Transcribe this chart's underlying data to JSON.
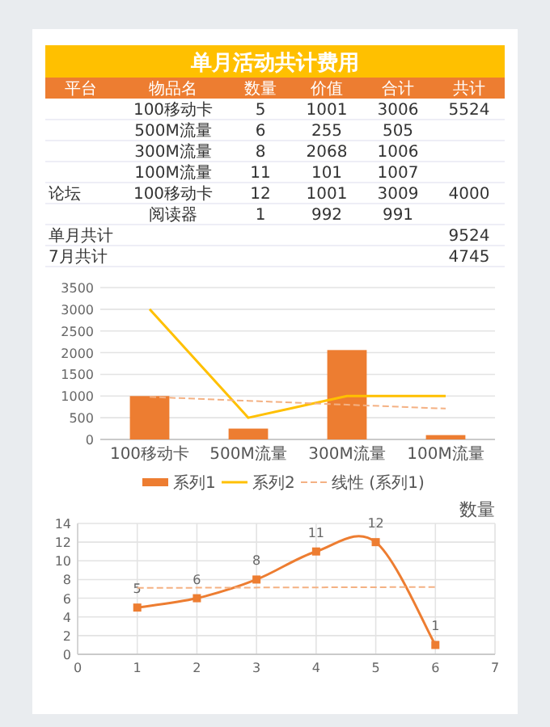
{
  "chart_data": [
    {
      "type": "other",
      "title": "单月活动共计费用",
      "categories": [
        "平台",
        "物品名",
        "数量",
        "价值",
        "合计",
        "共计"
      ],
      "cells": [
        [
          null,
          "100移动卡",
          "5",
          "1001",
          "3006",
          "5524"
        ],
        [
          null,
          "500M流量",
          "6",
          "255",
          "505",
          null
        ],
        [
          null,
          "300M流量",
          "8",
          "2068",
          "1006",
          null
        ],
        [
          null,
          "100M流量",
          "11",
          "101",
          "1007",
          null
        ],
        [
          "论坛",
          "100移动卡",
          "12",
          "1001",
          "3009",
          "4000"
        ],
        [
          null,
          "阅读器",
          "1",
          "992",
          "991",
          null
        ],
        [
          "单月共计",
          null,
          null,
          null,
          null,
          "9524"
        ],
        [
          "7月共计",
          null,
          null,
          null,
          null,
          "4745"
        ]
      ]
    },
    {
      "type": "bar",
      "categories": [
        "100移动卡",
        "500M流量",
        "300M流量",
        "100M流量"
      ],
      "series": [
        {
          "name": "系列1",
          "type": "bar",
          "color": "#ed7d31",
          "values": [
            1000,
            250,
            2060,
            100
          ]
        },
        {
          "name": "系列2",
          "type": "line",
          "color": "#ffc000",
          "values": [
            3000,
            500,
            1000,
            1000
          ]
        },
        {
          "name": "线性 (系列1)",
          "type": "line",
          "line_style": "dashed",
          "color": "#f4b183",
          "values": [
            980,
            890,
            800,
            710
          ]
        }
      ],
      "ylim": [
        0,
        3500
      ],
      "yticks": [
        0,
        500,
        1000,
        1500,
        2000,
        2500,
        3000,
        3500
      ],
      "grid": "y",
      "legend": "bottom"
    },
    {
      "type": "line",
      "title": "数量",
      "x": [
        1,
        2,
        3,
        4,
        5,
        6
      ],
      "series": [
        {
          "color": "#ed7d31",
          "values": [
            5,
            6,
            8,
            11,
            12,
            1
          ],
          "marker": "square",
          "value_labels": [
            "5",
            "6",
            "8",
            "11",
            "12",
            "1"
          ]
        },
        {
          "type": "line",
          "x": [
            1,
            6
          ],
          "values": [
            7.1,
            7.2
          ],
          "line_style": "dashed",
          "color": "#f4b183"
        }
      ],
      "xlim": [
        0,
        7
      ],
      "xticks": [
        0,
        1,
        2,
        3,
        4,
        5,
        6,
        7
      ],
      "ylim": [
        0,
        14
      ],
      "yticks": [
        0,
        2,
        4,
        6,
        8,
        10,
        12,
        14
      ],
      "grid": true
    }
  ]
}
